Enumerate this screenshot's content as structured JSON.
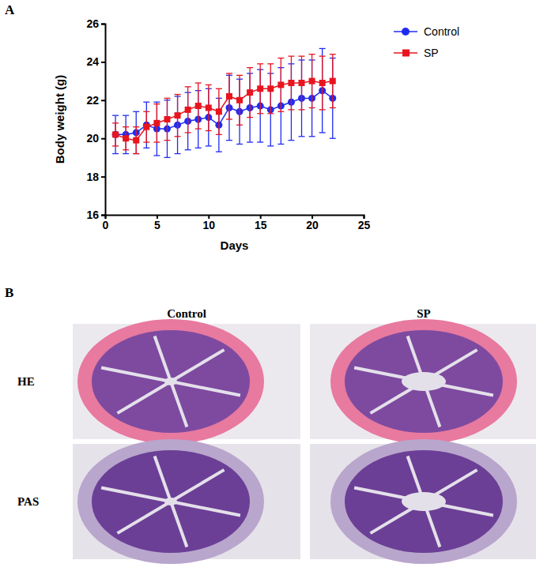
{
  "chart_data": {
    "type": "line",
    "panel_label": "A",
    "x_label": "Days",
    "y_label": "Body weight (g)",
    "x": [
      1,
      2,
      3,
      4,
      5,
      6,
      7,
      8,
      9,
      10,
      11,
      12,
      13,
      14,
      15,
      16,
      17,
      18,
      19,
      20,
      21,
      22
    ],
    "series": [
      {
        "name": "Control",
        "color": "#1f2cf0",
        "marker": "circle",
        "values": [
          20.2,
          20.2,
          20.3,
          20.7,
          20.5,
          20.5,
          20.7,
          20.9,
          21.0,
          21.1,
          20.7,
          21.6,
          21.4,
          21.6,
          21.7,
          21.5,
          21.7,
          21.9,
          22.1,
          22.1,
          22.5,
          22.1
        ],
        "errors": [
          1.0,
          1.0,
          1.1,
          1.2,
          1.4,
          1.5,
          1.5,
          1.5,
          1.5,
          1.5,
          1.4,
          1.7,
          1.7,
          1.8,
          1.9,
          1.9,
          2.0,
          2.0,
          2.0,
          2.0,
          2.2,
          2.1
        ]
      },
      {
        "name": "SP",
        "color": "#e8141e",
        "marker": "square",
        "values": [
          20.2,
          20.0,
          19.9,
          20.6,
          20.8,
          21.0,
          21.2,
          21.5,
          21.7,
          21.6,
          21.4,
          22.2,
          22.0,
          22.4,
          22.6,
          22.6,
          22.8,
          22.9,
          22.9,
          23.0,
          22.9,
          23.0
        ],
        "errors": [
          0.6,
          0.6,
          0.7,
          0.8,
          1.0,
          1.1,
          1.1,
          1.2,
          1.2,
          1.2,
          1.2,
          1.2,
          1.3,
          1.3,
          1.3,
          1.3,
          1.4,
          1.4,
          1.4,
          1.4,
          1.4,
          1.4
        ]
      }
    ],
    "xlim": [
      0,
      25
    ],
    "xticks": [
      0,
      5,
      10,
      15,
      20,
      25
    ],
    "ylim": [
      16,
      26
    ],
    "yticks": [
      16,
      18,
      20,
      22,
      24,
      26
    ],
    "legend": "right",
    "grid": false
  },
  "panel_b": {
    "label": "B",
    "columns": [
      "Control",
      "SP"
    ],
    "rows": [
      "HE",
      "PAS"
    ]
  }
}
